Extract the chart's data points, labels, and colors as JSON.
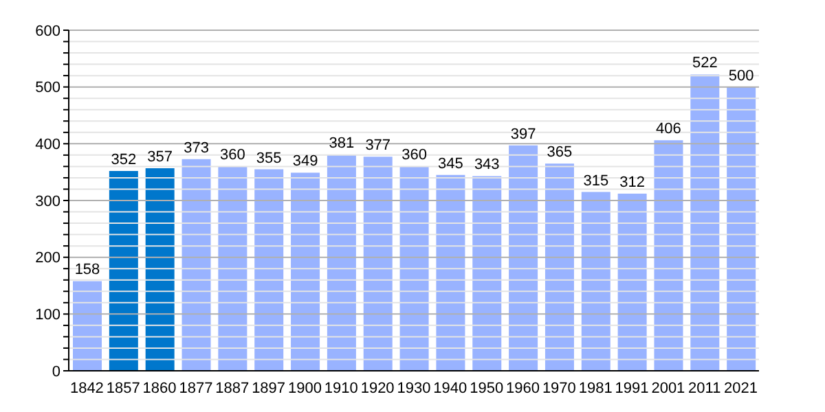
{
  "chart_data": {
    "type": "bar",
    "categories": [
      "1842",
      "1857",
      "1860",
      "1877",
      "1887",
      "1897",
      "1900",
      "1910",
      "1920",
      "1930",
      "1940",
      "1950",
      "1960",
      "1970",
      "1981",
      "1991",
      "2001",
      "2011",
      "2021"
    ],
    "values": [
      158,
      352,
      357,
      373,
      360,
      355,
      349,
      381,
      377,
      360,
      345,
      343,
      397,
      365,
      315,
      312,
      406,
      522,
      500
    ],
    "colors": [
      "#99b3ff",
      "#0077cc",
      "#0077cc",
      "#99b3ff",
      "#99b3ff",
      "#99b3ff",
      "#99b3ff",
      "#99b3ff",
      "#99b3ff",
      "#99b3ff",
      "#99b3ff",
      "#99b3ff",
      "#99b3ff",
      "#99b3ff",
      "#99b3ff",
      "#99b3ff",
      "#99b3ff",
      "#99b3ff",
      "#99b3ff"
    ],
    "data_labels": true,
    "ylim": [
      0,
      600
    ],
    "yticks": [
      0,
      {
        "value": 20,
        "label": null
      },
      {
        "value": 40,
        "label": null
      },
      {
        "value": 60,
        "label": null
      },
      {
        "value": 80,
        "label": null
      },
      100,
      {
        "value": 120,
        "label": null
      },
      {
        "value": 140,
        "label": null
      },
      {
        "value": 160,
        "label": null
      },
      {
        "value": 180,
        "label": null
      },
      200,
      {
        "value": 220,
        "label": null
      },
      {
        "value": 240,
        "label": null
      },
      {
        "value": 260,
        "label": null
      },
      {
        "value": 280,
        "label": null
      },
      300,
      {
        "value": 320,
        "label": null
      },
      {
        "value": 340,
        "label": null
      },
      {
        "value": 360,
        "label": null
      },
      {
        "value": 380,
        "label": null
      },
      400,
      {
        "value": 420,
        "label": null
      },
      {
        "value": 440,
        "label": null
      },
      {
        "value": 460,
        "label": null
      },
      {
        "value": 480,
        "label": null
      },
      500,
      {
        "value": 520,
        "label": null
      },
      {
        "value": 540,
        "label": null
      },
      {
        "value": 560,
        "label": null
      },
      {
        "value": 580,
        "label": null
      },
      600
    ],
    "grid": "y"
  }
}
